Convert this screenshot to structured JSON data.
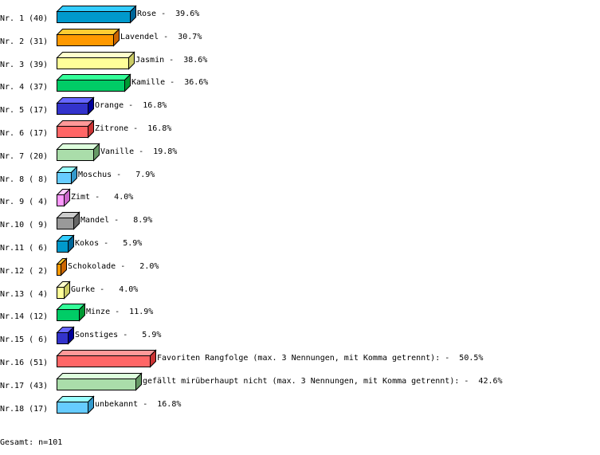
{
  "chart_data": {
    "type": "bar",
    "orientation": "horizontal",
    "style": "3d",
    "grid": false,
    "bars": [
      {
        "rank": "Nr. 1",
        "count": 40,
        "name": "Rose",
        "percent": "39.6%",
        "colors": [
          "#0099cc",
          "#33ccff",
          "#006699"
        ]
      },
      {
        "rank": "Nr. 2",
        "count": 31,
        "name": "Lavendel",
        "percent": "30.7%",
        "colors": [
          "#ff9900",
          "#ffcc33",
          "#cc6600"
        ]
      },
      {
        "rank": "Nr. 3",
        "count": 39,
        "name": "Jasmin",
        "percent": "38.6%",
        "colors": [
          "#ffff99",
          "#ffffcc",
          "#cccc66"
        ]
      },
      {
        "rank": "Nr. 4",
        "count": 37,
        "name": "Kamille",
        "percent": "36.6%",
        "colors": [
          "#00cc66",
          "#33ff99",
          "#009933"
        ]
      },
      {
        "rank": "Nr. 5",
        "count": 17,
        "name": "Orange",
        "percent": "16.8%",
        "colors": [
          "#3333cc",
          "#6666ff",
          "#000099"
        ]
      },
      {
        "rank": "Nr. 6",
        "count": 17,
        "name": "Zitrone",
        "percent": "16.8%",
        "colors": [
          "#ff6666",
          "#ff9999",
          "#cc3333"
        ]
      },
      {
        "rank": "Nr. 7",
        "count": 20,
        "name": "Vanille",
        "percent": "19.8%",
        "colors": [
          "#aaddaa",
          "#ddffdd",
          "#669966"
        ]
      },
      {
        "rank": "Nr. 8",
        "count": 8,
        "name": "Moschus",
        "percent": "7.9%",
        "colors": [
          "#66ccff",
          "#99ffff",
          "#3399cc"
        ]
      },
      {
        "rank": "Nr. 9",
        "count": 4,
        "name": "Zimt",
        "percent": "4.0%",
        "colors": [
          "#ff99ff",
          "#ffccff",
          "#cc66cc"
        ]
      },
      {
        "rank": "Nr.10",
        "count": 9,
        "name": "Mandel",
        "percent": "8.9%",
        "colors": [
          "#999999",
          "#cccccc",
          "#666666"
        ]
      },
      {
        "rank": "Nr.11",
        "count": 6,
        "name": "Kokos",
        "percent": "5.9%",
        "colors": [
          "#0099cc",
          "#33ccff",
          "#006699"
        ]
      },
      {
        "rank": "Nr.12",
        "count": 2,
        "name": "Schokolade",
        "percent": "2.0%",
        "colors": [
          "#ff9900",
          "#ffcc33",
          "#cc6600"
        ]
      },
      {
        "rank": "Nr.13",
        "count": 4,
        "name": "Gurke",
        "percent": "4.0%",
        "colors": [
          "#ffff99",
          "#ffffcc",
          "#cccc66"
        ]
      },
      {
        "rank": "Nr.14",
        "count": 12,
        "name": "Minze",
        "percent": "11.9%",
        "colors": [
          "#00cc66",
          "#33ff99",
          "#009933"
        ]
      },
      {
        "rank": "Nr.15",
        "count": 6,
        "name": "Sonstiges",
        "percent": "5.9%",
        "colors": [
          "#3333cc",
          "#6666ff",
          "#000099"
        ]
      },
      {
        "rank": "Nr.16",
        "count": 51,
        "name": "Favoriten Rangfolge (max. 3 Nennungen, mit Komma getrennt):",
        "percent": "50.5%",
        "colors": [
          "#ff6666",
          "#ff9999",
          "#cc3333"
        ]
      },
      {
        "rank": "Nr.17",
        "count": 43,
        "name": "gefällt mirüberhaupt nicht (max. 3 Nennungen, mit Komma getrennt):",
        "percent": "42.6%",
        "colors": [
          "#aaddaa",
          "#ddffdd",
          "#669966"
        ]
      },
      {
        "rank": "Nr.18",
        "count": 17,
        "name": "unbekannt",
        "percent": "16.8%",
        "colors": [
          "#66ccff",
          "#99ffff",
          "#3399cc"
        ]
      }
    ],
    "total_label": "Gesamt: n=101"
  }
}
